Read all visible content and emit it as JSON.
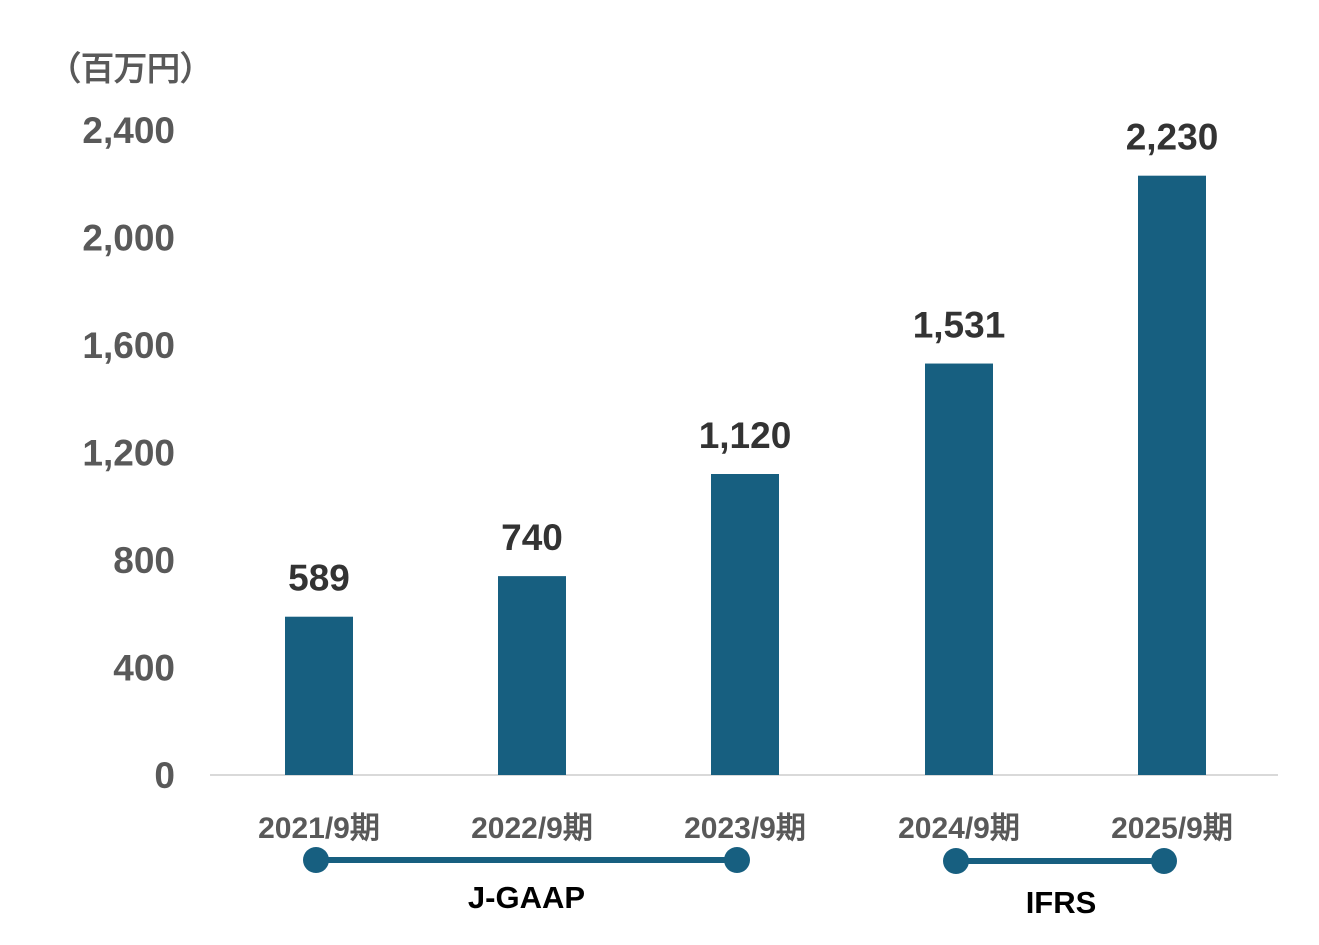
{
  "chart_data": {
    "type": "bar",
    "unit_label": "（百万円）",
    "categories": [
      "2021/9期",
      "2022/9期",
      "2023/9期",
      "2024/9期",
      "2025/9期"
    ],
    "values": [
      589,
      740,
      1120,
      1531,
      2230
    ],
    "value_labels": [
      "589",
      "740",
      "1,120",
      "1,531",
      "2,230"
    ],
    "ylim": [
      0,
      2400
    ],
    "yticks": [
      0,
      400,
      800,
      1200,
      1600,
      2000,
      2400
    ],
    "ytick_labels": [
      "0",
      "400",
      "800",
      "1,200",
      "1,600",
      "2,000",
      "2,400"
    ],
    "title": "",
    "xlabel": "",
    "ylabel": "",
    "grid": false,
    "bar_color": "#175F80",
    "accounting_standards": [
      {
        "label": "J-GAAP",
        "from_category": 0,
        "to_category": 2
      },
      {
        "label": "IFRS",
        "from_category": 3,
        "to_category": 4
      }
    ]
  }
}
